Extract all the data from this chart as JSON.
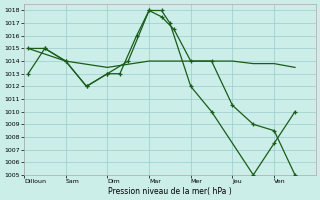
{
  "background_color": "#cceee8",
  "grid_color": "#99cccc",
  "line_color": "#1a5c1a",
  "ylim": [
    1005,
    1018.5
  ],
  "yticks": [
    1005,
    1006,
    1007,
    1008,
    1009,
    1010,
    1011,
    1012,
    1013,
    1014,
    1015,
    1016,
    1017,
    1018
  ],
  "day_labels": [
    "Dilloun",
    "Sam",
    "Dim",
    "Mar",
    "Mer",
    "Jeu",
    "Ven"
  ],
  "xlabel": "Pression niveau de la mer( hPa )",
  "xlim": [
    0,
    7
  ],
  "series1_x": [
    0.1,
    0.5,
    1.0,
    1.5,
    2.0,
    2.3,
    2.7,
    3.0,
    3.3,
    3.6,
    4.0,
    4.5,
    5.0,
    5.5,
    6.0,
    6.5
  ],
  "series1_y": [
    1013,
    1015,
    1014,
    1012,
    1013,
    1013,
    1016,
    1018,
    1017.5,
    1016.5,
    1014,
    1014,
    1010.5,
    1009,
    1008.5,
    1005
  ],
  "series2_x": [
    0.1,
    0.5,
    1.0,
    1.5,
    2.0,
    2.5,
    3.0,
    3.3,
    3.5,
    4.0,
    4.5,
    5.5,
    6.0,
    6.5
  ],
  "series2_y": [
    1015,
    1015,
    1014,
    1012,
    1013,
    1014,
    1018,
    1018,
    1017,
    1012,
    1010,
    1005,
    1007.5,
    1010
  ],
  "series3_x": [
    0.1,
    1.0,
    2.0,
    3.0,
    4.0,
    4.5,
    5.0,
    5.5,
    6.0,
    6.5
  ],
  "series3_y": [
    1015,
    1014,
    1013.5,
    1014,
    1014,
    1014,
    1014,
    1013.8,
    1013.8,
    1013.5
  ],
  "series4_x": [
    5.5,
    6.0,
    6.5
  ],
  "series4_y": [
    1005,
    1007.5,
    1010
  ]
}
